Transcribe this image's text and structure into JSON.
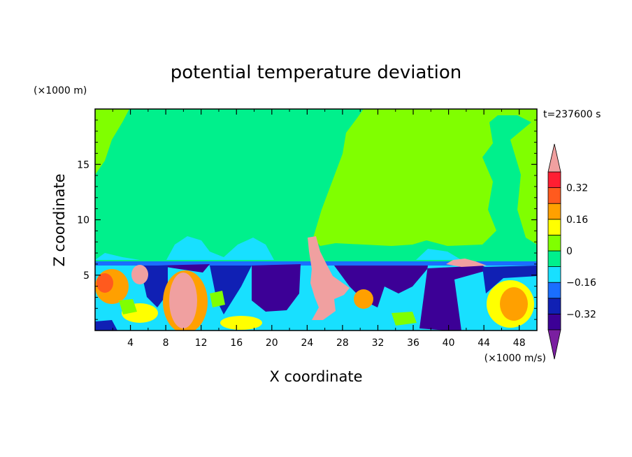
{
  "chart_data": {
    "type": "heatmap",
    "title": "potential temperature deviation",
    "xlabel": "X coordinate",
    "ylabel": "Z coordinate",
    "x_unit": "(×1000 m/s)",
    "y_unit": "(×1000 m)",
    "time_label": "t=237600 s",
    "xlim": [
      0,
      50
    ],
    "ylim": [
      0,
      20
    ],
    "x_ticks": [
      4,
      8,
      12,
      16,
      20,
      24,
      28,
      32,
      36,
      40,
      44,
      48
    ],
    "x_tick_labels": [
      "4",
      "8",
      "12",
      "16",
      "20",
      "24",
      "28",
      "32",
      "36",
      "40",
      "44",
      "48"
    ],
    "y_ticks": [
      5,
      10,
      15
    ],
    "y_tick_labels": [
      "5",
      "10",
      "15"
    ],
    "colorbar": {
      "levels": [
        -0.4,
        -0.32,
        -0.24,
        -0.16,
        -0.08,
        0,
        0.08,
        0.16,
        0.24,
        0.32,
        0.4
      ],
      "labeled": [
        0.32,
        0.16,
        0,
        -0.16,
        -0.32
      ],
      "labels": [
        "0.32",
        "0.16",
        "0",
        "−0.16",
        "−0.32"
      ],
      "colors": [
        "#7a1fa0",
        "#3c0096",
        "#1020b4",
        "#1a6eff",
        "#18e0ff",
        "#00f08c",
        "#80ff00",
        "#ffff00",
        "#ffa000",
        "#ff5a1e",
        "#ff1e32",
        "#f0a0a0"
      ],
      "extend": "both"
    },
    "regions": {
      "upper_left": -0.04,
      "upper_right": 0.04,
      "boundary_layer_top_z": 6.2
    }
  }
}
